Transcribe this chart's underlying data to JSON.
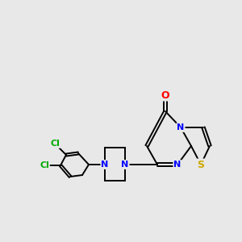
{
  "background_color": "#e8e8e8",
  "atom_colors": {
    "N": "#0000ff",
    "O": "#ff0000",
    "S": "#ccaa00",
    "Cl": "#00aa00"
  },
  "figsize": [
    3.0,
    3.0
  ],
  "dpi": 100,
  "lw": 1.4,
  "fs_large": 9.0,
  "fs_small": 8.0
}
